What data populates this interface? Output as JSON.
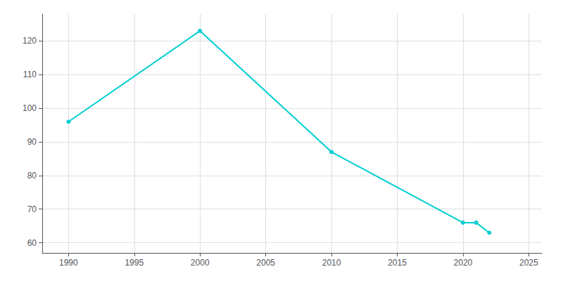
{
  "chart_data": {
    "type": "line",
    "x": [
      1990,
      2000,
      2010,
      2020,
      2021,
      2022
    ],
    "values": [
      96,
      123,
      87,
      66,
      66,
      63
    ],
    "color": "#00CED1",
    "marker": "circle",
    "xlim": [
      1988,
      2026
    ],
    "ylim": [
      57,
      128
    ],
    "xticks": [
      1990,
      1995,
      2000,
      2005,
      2010,
      2015,
      2020,
      2025
    ],
    "yticks": [
      60,
      70,
      80,
      90,
      100,
      110,
      120
    ],
    "grid": true
  }
}
